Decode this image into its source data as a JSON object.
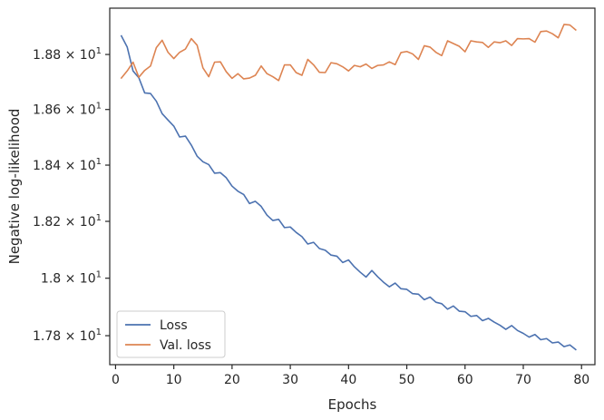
{
  "chart_data": {
    "type": "line",
    "title": "",
    "xlabel": "Epochs",
    "ylabel": "Negative log-likelihood",
    "xlim": [
      -1,
      82.3
    ],
    "ylim": [
      17.7,
      18.97
    ],
    "y_scale": "log",
    "grid": false,
    "legend_position": "lower-left",
    "x_ticks": [
      0,
      10,
      20,
      30,
      40,
      50,
      60,
      70,
      80
    ],
    "x_tick_labels": [
      "0",
      "10",
      "20",
      "30",
      "40",
      "50",
      "60",
      "70",
      "80"
    ],
    "y_ticks": [
      17.8,
      18.0,
      18.2,
      18.4,
      18.6,
      18.8
    ],
    "y_tick_labels": [
      {
        "mant": "1.78",
        "exp": "1"
      },
      {
        "mant": "1.8",
        "exp": "1"
      },
      {
        "mant": "1.82",
        "exp": "1"
      },
      {
        "mant": "1.84",
        "exp": "1"
      },
      {
        "mant": "1.86",
        "exp": "1"
      },
      {
        "mant": "1.88",
        "exp": "1"
      }
    ],
    "x": [
      1,
      2,
      3,
      4,
      5,
      6,
      7,
      8,
      9,
      10,
      11,
      12,
      13,
      14,
      15,
      16,
      17,
      18,
      19,
      20,
      21,
      22,
      23,
      24,
      25,
      26,
      27,
      28,
      29,
      30,
      31,
      32,
      33,
      34,
      35,
      36,
      37,
      38,
      39,
      40,
      41,
      42,
      43,
      44,
      45,
      46,
      47,
      48,
      49,
      50,
      51,
      52,
      53,
      54,
      55,
      56,
      57,
      58,
      59,
      60,
      61,
      62,
      63,
      64,
      65,
      66,
      67,
      68,
      69,
      70,
      71,
      72,
      73,
      74,
      75,
      76,
      77,
      78,
      79
    ],
    "series": [
      {
        "name": "Loss",
        "color": "#4c72b0",
        "values": [
          18.868,
          18.827,
          18.74,
          18.715,
          18.66,
          18.658,
          18.63,
          18.585,
          18.562,
          18.54,
          18.501,
          18.504,
          18.472,
          18.432,
          18.412,
          18.402,
          18.371,
          18.373,
          18.355,
          18.325,
          18.307,
          18.295,
          18.263,
          18.271,
          18.253,
          18.222,
          18.203,
          18.207,
          18.178,
          18.18,
          18.161,
          18.146,
          18.12,
          18.126,
          18.104,
          18.098,
          18.081,
          18.077,
          18.055,
          18.064,
          18.04,
          18.021,
          18.004,
          18.027,
          18.005,
          17.986,
          17.97,
          17.983,
          17.963,
          17.961,
          17.946,
          17.944,
          17.925,
          17.934,
          17.916,
          17.911,
          17.892,
          17.903,
          17.885,
          17.883,
          17.867,
          17.87,
          17.852,
          17.86,
          17.847,
          17.836,
          17.822,
          17.835,
          17.818,
          17.808,
          17.795,
          17.804,
          17.786,
          17.79,
          17.775,
          17.778,
          17.762,
          17.768,
          17.752
        ]
      },
      {
        "name": "Val. loss",
        "color": "#dd8452",
        "values": [
          18.714,
          18.74,
          18.772,
          18.717,
          18.742,
          18.758,
          18.825,
          18.852,
          18.808,
          18.785,
          18.808,
          18.82,
          18.858,
          18.834,
          18.751,
          18.719,
          18.772,
          18.773,
          18.737,
          18.713,
          18.73,
          18.711,
          18.714,
          18.724,
          18.758,
          18.73,
          18.719,
          18.705,
          18.762,
          18.762,
          18.734,
          18.724,
          18.782,
          18.762,
          18.735,
          18.734,
          18.77,
          18.766,
          18.755,
          18.74,
          18.76,
          18.755,
          18.765,
          18.749,
          18.76,
          18.762,
          18.773,
          18.763,
          18.807,
          18.811,
          18.802,
          18.782,
          18.832,
          18.827,
          18.808,
          18.796,
          18.85,
          18.84,
          18.83,
          18.81,
          18.85,
          18.846,
          18.844,
          18.826,
          18.846,
          18.843,
          18.85,
          18.833,
          18.858,
          18.857,
          18.858,
          18.845,
          18.884,
          18.886,
          18.876,
          18.861,
          18.91,
          18.908,
          18.89
        ]
      }
    ]
  }
}
